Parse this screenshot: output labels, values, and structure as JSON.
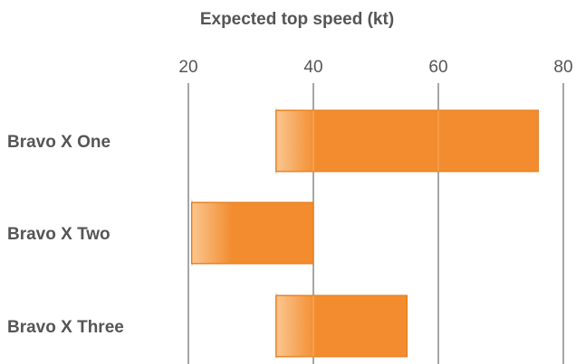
{
  "chart_data": {
    "type": "floating-bar",
    "orientation": "horizontal",
    "title": "Expected top speed (kt)",
    "xlabel": "",
    "ylabel": "",
    "xlim": [
      20,
      80
    ],
    "x_ticks": [
      20,
      40,
      60,
      80
    ],
    "x_tick_labels": [
      "20",
      "40",
      "60",
      "80"
    ],
    "x_axis_position": "top",
    "grid": true,
    "legend": "none",
    "categories": [
      "Bravo X One",
      "Bravo X Two",
      "Bravo X Three"
    ],
    "series": [
      {
        "ranges": [
          [
            34,
            76
          ],
          [
            20.5,
            40
          ],
          [
            34,
            55
          ]
        ]
      }
    ],
    "colors": {
      "bar": "#f28c2e",
      "bar_highlight": "#fbc58e",
      "grid": "#888888",
      "text": "#555555"
    }
  }
}
